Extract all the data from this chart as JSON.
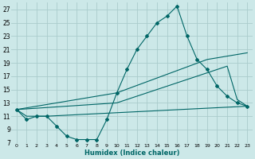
{
  "bg_color": "#cce8e8",
  "grid_color": "#aacccc",
  "line_color": "#006666",
  "xlabel": "Humidex (Indice chaleur)",
  "xlim": [
    -0.5,
    23.5
  ],
  "ylim": [
    7,
    28
  ],
  "yticks": [
    7,
    9,
    11,
    13,
    15,
    17,
    19,
    21,
    23,
    25,
    27
  ],
  "xticks": [
    0,
    1,
    2,
    3,
    4,
    5,
    6,
    7,
    8,
    9,
    10,
    11,
    12,
    13,
    14,
    15,
    16,
    17,
    18,
    19,
    20,
    21,
    22,
    23
  ],
  "line1_x": [
    0,
    1,
    2,
    3,
    4,
    5,
    6,
    7,
    8,
    9,
    10,
    11,
    12,
    13,
    14,
    15,
    16,
    17,
    18,
    19,
    20,
    21,
    22,
    23
  ],
  "line1_y": [
    12,
    10.5,
    11,
    11,
    9.5,
    8,
    7.5,
    7.5,
    7.5,
    10.5,
    14.5,
    18,
    21,
    23,
    25,
    26,
    27.5,
    23,
    19.5,
    18,
    15.5,
    14,
    13,
    12.5
  ],
  "line2_x": [
    0,
    1,
    2,
    3,
    23
  ],
  "line2_y": [
    12,
    11,
    11,
    11,
    12.5
  ],
  "line3_x": [
    0,
    10,
    19,
    20,
    21,
    22,
    23
  ],
  "line3_y": [
    12,
    13,
    17.5,
    18,
    18.5,
    13.5,
    12.5
  ],
  "line4_x": [
    0,
    10,
    19,
    23
  ],
  "line4_y": [
    12,
    14.5,
    19.5,
    20.5
  ]
}
